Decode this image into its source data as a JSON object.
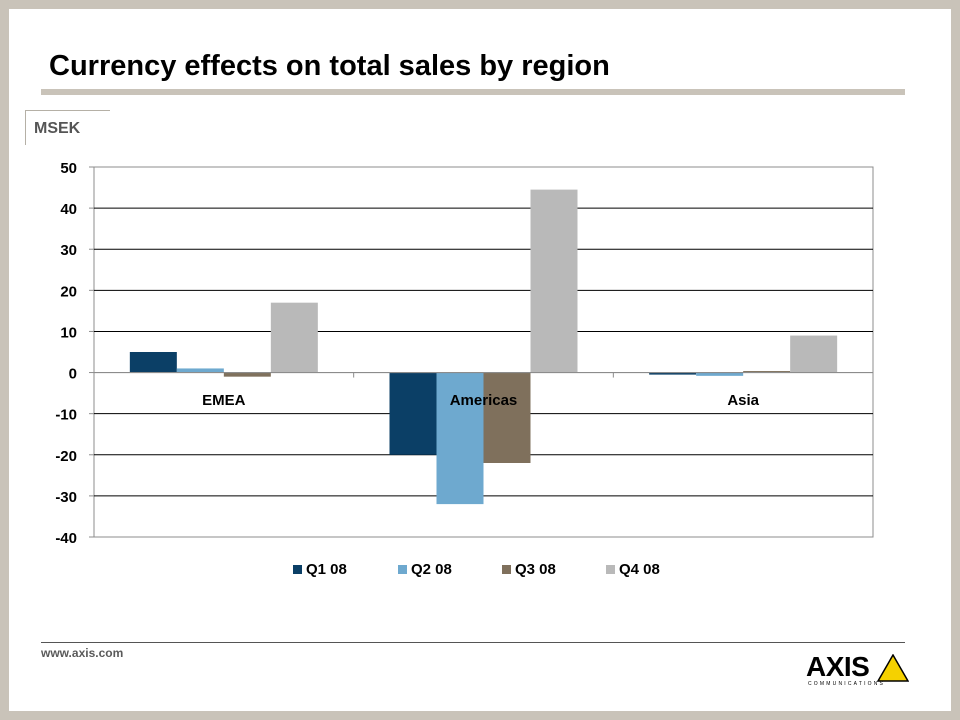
{
  "title": "Currency effects on total sales by region",
  "unit": "MSEK",
  "footer": {
    "website": "www.axis.com"
  },
  "logo": {
    "word": "AXIS",
    "tagline": "COMMUNICATIONS",
    "icon": "yellow-warning-triangle",
    "triangle_color": "#f5d100"
  },
  "colors": {
    "Q1 08": "#0b3f66",
    "Q2 08": "#6ea9cf",
    "Q3 08": "#7f705c",
    "Q4 08": "#b9b9b9",
    "frame": "#c9c3b9"
  },
  "chart_data": {
    "type": "bar",
    "categories": [
      "EMEA",
      "Americas",
      "Asia"
    ],
    "series": [
      {
        "name": "Q1 08",
        "values": [
          5,
          -20,
          -0.5
        ]
      },
      {
        "name": "Q2 08",
        "values": [
          1,
          -32,
          -0.8
        ]
      },
      {
        "name": "Q3 08",
        "values": [
          -1,
          -22,
          0
        ]
      },
      {
        "name": "Q4 08",
        "values": [
          17,
          44.5,
          9
        ]
      }
    ],
    "ylabel": "",
    "xlabel": "",
    "ylim": [
      -40,
      50
    ],
    "yticks": [
      "50",
      "40",
      "30",
      "20",
      "10",
      "0",
      "-10",
      "-20",
      "-30",
      "-40"
    ],
    "grid": true,
    "legend": "bottom"
  }
}
